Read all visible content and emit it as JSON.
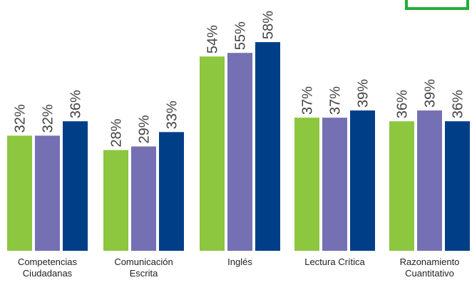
{
  "chart_data": {
    "type": "bar",
    "categories": [
      [
        "Competencias",
        "Ciudadanas"
      ],
      [
        "Comunicación",
        "Escrita"
      ],
      [
        "Inglés"
      ],
      [
        "Lectura Crítica"
      ],
      [
        "Razonamiento",
        "Cuantitativo"
      ]
    ],
    "series": [
      {
        "color": "#8dc63f",
        "values": [
          32,
          28,
          54,
          37,
          36
        ]
      },
      {
        "color": "#7570b3",
        "values": [
          32,
          29,
          55,
          37,
          39
        ]
      },
      {
        "color": "#003f87",
        "values": [
          36,
          33,
          58,
          39,
          36
        ]
      }
    ],
    "value_labels": [
      [
        "32%",
        "28%",
        "54%",
        "37%",
        "36%"
      ],
      [
        "32%",
        "29%",
        "55%",
        "37%",
        "39%"
      ],
      [
        "36%",
        "33%",
        "58%",
        "39%",
        "36%"
      ]
    ],
    "ylim": [
      0,
      58
    ],
    "grid": false,
    "legend": "none"
  },
  "decor": {
    "corner_box_color": "#22ad39"
  }
}
